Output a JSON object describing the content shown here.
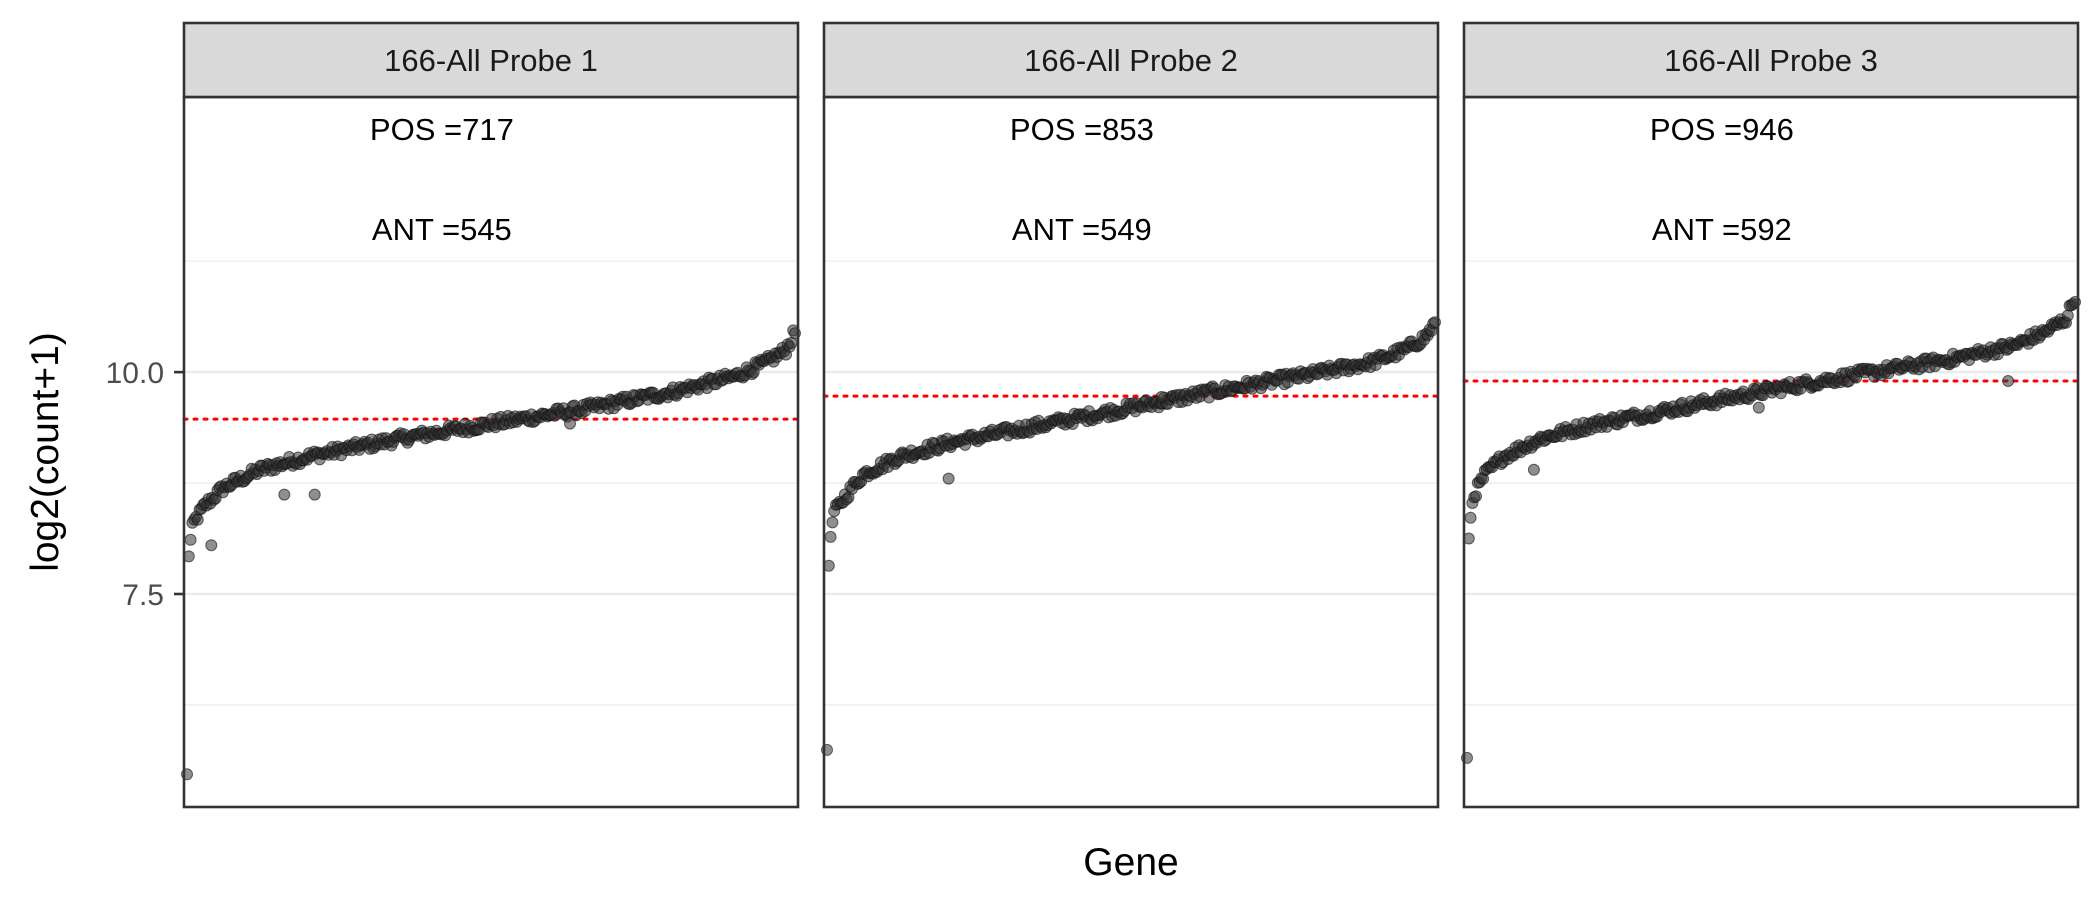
{
  "chart_data": {
    "type": "scatter",
    "xlabel": "Gene",
    "ylabel": "log2(count+1)",
    "ylim": [
      5.1,
      13.1
    ],
    "yticks": [
      7.5,
      10.0
    ],
    "ytick_labels": [
      "7.5",
      "10.0"
    ],
    "grid": true,
    "point_color": "#333333",
    "reference_line_color": "#ff0000",
    "reference_line_style": "dotted",
    "panels": [
      {
        "title": "166-All Probe 1",
        "pos_label": "POS =717",
        "ant_label": "ANT =545",
        "reference_y": 9.47,
        "n_points": 340,
        "curve": [
          [
            0,
            5.45
          ],
          [
            0.002,
            7.9
          ],
          [
            0.01,
            8.3
          ],
          [
            0.03,
            8.5
          ],
          [
            0.06,
            8.7
          ],
          [
            0.12,
            8.9
          ],
          [
            0.2,
            9.05
          ],
          [
            0.35,
            9.25
          ],
          [
            0.5,
            9.42
          ],
          [
            0.65,
            9.58
          ],
          [
            0.8,
            9.78
          ],
          [
            0.9,
            9.95
          ],
          [
            0.95,
            10.1
          ],
          [
            0.985,
            10.25
          ],
          [
            1,
            10.45
          ]
        ],
        "outliers": [
          [
            0.04,
            8.05
          ],
          [
            0.16,
            8.62
          ],
          [
            0.21,
            8.62
          ],
          [
            0.63,
            9.42
          ]
        ]
      },
      {
        "title": "166-All Probe 2",
        "pos_label": "POS =853",
        "ant_label": "ANT =549",
        "reference_y": 9.73,
        "n_points": 340,
        "curve": [
          [
            0,
            5.75
          ],
          [
            0.002,
            7.8
          ],
          [
            0.01,
            8.4
          ],
          [
            0.03,
            8.6
          ],
          [
            0.06,
            8.85
          ],
          [
            0.12,
            9.05
          ],
          [
            0.2,
            9.2
          ],
          [
            0.35,
            9.4
          ],
          [
            0.5,
            9.6
          ],
          [
            0.65,
            9.8
          ],
          [
            0.8,
            9.98
          ],
          [
            0.9,
            10.12
          ],
          [
            0.95,
            10.25
          ],
          [
            0.985,
            10.4
          ],
          [
            1,
            10.55
          ]
        ],
        "outliers": [
          [
            0.2,
            8.8
          ],
          [
            0.55,
            9.72
          ]
        ]
      },
      {
        "title": "166-All Probe 3",
        "pos_label": "POS =946",
        "ant_label": "ANT =592",
        "reference_y": 9.9,
        "n_points": 340,
        "curve": [
          [
            0,
            5.6
          ],
          [
            0.002,
            8.1
          ],
          [
            0.01,
            8.6
          ],
          [
            0.03,
            8.85
          ],
          [
            0.06,
            9.05
          ],
          [
            0.12,
            9.25
          ],
          [
            0.2,
            9.4
          ],
          [
            0.35,
            9.6
          ],
          [
            0.5,
            9.8
          ],
          [
            0.65,
            9.98
          ],
          [
            0.8,
            10.15
          ],
          [
            0.9,
            10.3
          ],
          [
            0.95,
            10.45
          ],
          [
            0.985,
            10.6
          ],
          [
            1,
            10.85
          ]
        ],
        "outliers": [
          [
            0.11,
            8.9
          ],
          [
            0.48,
            9.6
          ],
          [
            0.89,
            9.9
          ]
        ]
      }
    ]
  }
}
